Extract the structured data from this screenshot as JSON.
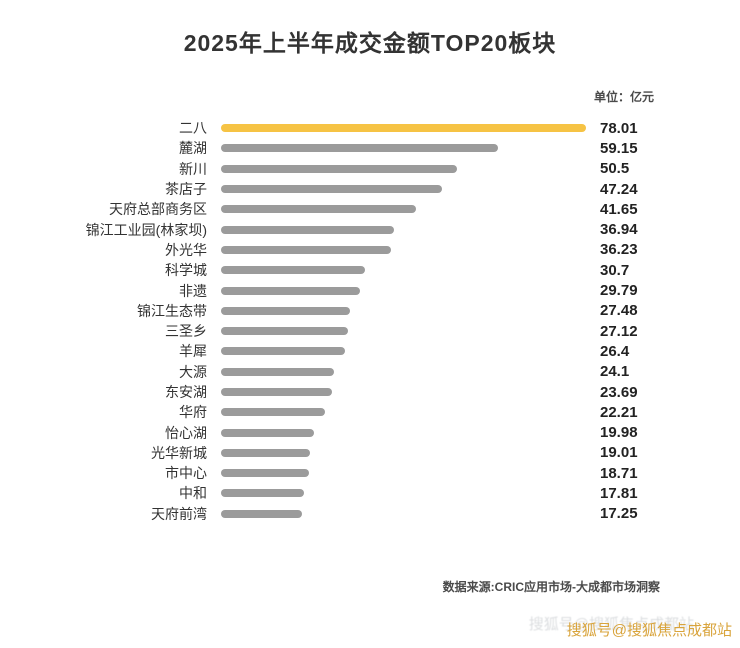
{
  "title": "2025年上半年成交金额TOP20板块",
  "unit_label": "单位：亿元",
  "source": "数据来源:CRIC应用市场-大成都市场洞察",
  "watermark": "搜狐号@搜狐焦点成都站",
  "colors": {
    "highlight_bar": "#f6c344",
    "default_bar": "#9b9b9b",
    "value_text": "#222222",
    "label_text": "#333333"
  },
  "chart_data": {
    "type": "bar",
    "orientation": "horizontal",
    "title": "2025年上半年成交金额TOP20板块",
    "unit": "亿元",
    "xlabel": "",
    "ylabel": "",
    "xlim": [
      0,
      78.01
    ],
    "grid": false,
    "legend": false,
    "highlight_index": 0,
    "categories": [
      "二八",
      "麓湖",
      "新川",
      "茶店子",
      "天府总部商务区",
      "锦江工业园(林家坝)",
      "外光华",
      "科学城",
      "非遗",
      "锦江生态带",
      "三圣乡",
      "羊犀",
      "大源",
      "东安湖",
      "华府",
      "怡心湖",
      "光华新城",
      "市中心",
      "中和",
      "天府前湾"
    ],
    "values": [
      78.01,
      59.15,
      50.5,
      47.24,
      41.65,
      36.94,
      36.23,
      30.7,
      29.79,
      27.48,
      27.12,
      26.4,
      24.1,
      23.69,
      22.21,
      19.98,
      19.01,
      18.71,
      17.81,
      17.25
    ]
  }
}
